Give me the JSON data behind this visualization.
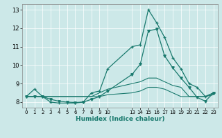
{
  "xlabel": "Humidex (Indice chaleur)",
  "xlim": [
    -0.5,
    23.5
  ],
  "ylim": [
    7.7,
    13.3
  ],
  "yticks": [
    8,
    9,
    10,
    11,
    12,
    13
  ],
  "xtick_positions": [
    0,
    1,
    2,
    3,
    4,
    5,
    6,
    7,
    8,
    9,
    10,
    13,
    14,
    15,
    16,
    17,
    18,
    19,
    20,
    21,
    22,
    23
  ],
  "xtick_labels": [
    "0",
    "1",
    "2",
    "3",
    "4",
    "5",
    "6",
    "7",
    "8",
    "9",
    "10",
    "13",
    "14",
    "15",
    "16",
    "17",
    "18",
    "19",
    "20",
    "21",
    "22",
    "23"
  ],
  "bg_color": "#cce8e8",
  "line_color": "#1a7a6e",
  "grid_color": "#ffffff",
  "line1_x": [
    0,
    1,
    2,
    3,
    4,
    5,
    6,
    7,
    8,
    9,
    10,
    13,
    14,
    15,
    16,
    17,
    18,
    19,
    20,
    21,
    22,
    23
  ],
  "line1_y": [
    8.3,
    8.7,
    8.3,
    8.0,
    7.95,
    7.95,
    7.95,
    8.0,
    8.5,
    8.6,
    9.8,
    11.0,
    11.1,
    13.0,
    12.3,
    11.5,
    10.4,
    9.8,
    9.0,
    8.8,
    8.3,
    8.5
  ],
  "line2_x": [
    0,
    1,
    2,
    3,
    4,
    5,
    6,
    7,
    8,
    9,
    10,
    13,
    14,
    15,
    16,
    17,
    18,
    19,
    20,
    21,
    22,
    23
  ],
  "line2_y": [
    8.3,
    8.3,
    8.3,
    8.3,
    8.3,
    8.3,
    8.3,
    8.3,
    8.3,
    8.5,
    8.7,
    9.0,
    9.1,
    9.3,
    9.3,
    9.1,
    8.9,
    8.8,
    8.3,
    8.3,
    8.3,
    8.5
  ],
  "line3_x": [
    0,
    1,
    2,
    3,
    4,
    5,
    6,
    7,
    8,
    9,
    10,
    13,
    14,
    15,
    16,
    17,
    18,
    19,
    20,
    21,
    22,
    23
  ],
  "line3_y": [
    8.3,
    8.3,
    8.3,
    8.3,
    8.3,
    8.3,
    8.3,
    8.3,
    8.3,
    8.3,
    8.4,
    8.5,
    8.6,
    8.8,
    8.8,
    8.7,
    8.5,
    8.3,
    8.3,
    8.3,
    8.3,
    8.4
  ],
  "line4_x": [
    0,
    1,
    2,
    3,
    4,
    5,
    6,
    7,
    8,
    9,
    10,
    13,
    14,
    15,
    16,
    17,
    18,
    19,
    20,
    21,
    22,
    23
  ],
  "line4_y": [
    8.3,
    8.3,
    8.3,
    8.15,
    8.05,
    8.0,
    7.98,
    8.0,
    8.15,
    8.3,
    8.6,
    9.5,
    10.05,
    11.85,
    11.95,
    10.5,
    9.85,
    9.3,
    8.8,
    8.25,
    8.05,
    8.5
  ]
}
